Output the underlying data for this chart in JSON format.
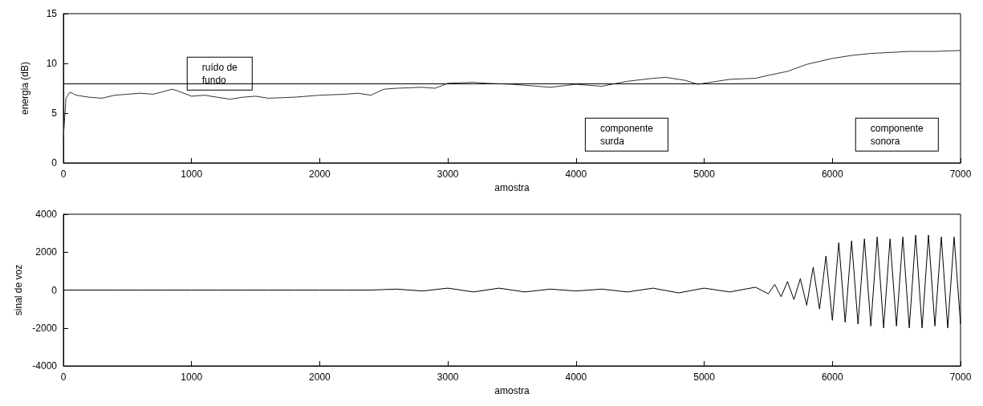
{
  "chart_data": [
    {
      "type": "line",
      "xlabel": "amostra",
      "ylabel": "energia (dB)",
      "annotations": [
        "ruído de\nfundo",
        "componente\nsurda",
        "componente\nsonora"
      ],
      "xlim": [
        0,
        7000
      ],
      "xticks": [
        0,
        1000,
        2000,
        3000,
        4000,
        5000,
        6000,
        7000
      ],
      "ylim": [
        0,
        15
      ],
      "yticks": [
        0,
        5,
        10,
        15
      ],
      "grid": false,
      "marker": "none",
      "line_style": "solid",
      "ref_lines": [
        {
          "axis": "y",
          "value": 8,
          "color": "#000000"
        }
      ],
      "series": [
        {
          "color": "#333333",
          "x": [
            0,
            20,
            50,
            100,
            200,
            300,
            400,
            500,
            600,
            700,
            850,
            900,
            1000,
            1100,
            1300,
            1400,
            1500,
            1600,
            1800,
            2000,
            2200,
            2300,
            2400,
            2500,
            2600,
            2800,
            2900,
            3000,
            3200,
            3300,
            3500,
            3700,
            3800,
            4000,
            4200,
            4400,
            4600,
            4700,
            4850,
            4950,
            5100,
            5200,
            5400,
            5500,
            5650,
            5800,
            5900,
            6000,
            6150,
            6300,
            6450,
            6600,
            6800,
            7000
          ],
          "values": [
            2.5,
            6.5,
            7.1,
            6.8,
            6.6,
            6.5,
            6.8,
            6.9,
            7.0,
            6.9,
            7.4,
            7.2,
            6.7,
            6.8,
            6.4,
            6.6,
            6.7,
            6.5,
            6.6,
            6.8,
            6.9,
            7.0,
            6.8,
            7.4,
            7.5,
            7.6,
            7.5,
            8.0,
            8.1,
            8.0,
            7.9,
            7.7,
            7.6,
            7.9,
            7.7,
            8.2,
            8.5,
            8.6,
            8.3,
            7.9,
            8.2,
            8.4,
            8.5,
            8.8,
            9.2,
            9.9,
            10.2,
            10.5,
            10.8,
            11.0,
            11.1,
            11.2,
            11.2,
            11.3
          ]
        }
      ]
    },
    {
      "type": "line",
      "xlabel": "amostra",
      "ylabel": "sinal de voz",
      "xlim": [
        0,
        7000
      ],
      "xticks": [
        0,
        1000,
        2000,
        3000,
        4000,
        5000,
        6000,
        7000
      ],
      "ylim": [
        -4000,
        4000
      ],
      "yticks": [
        -4000,
        -2000,
        0,
        2000,
        4000
      ],
      "grid": false,
      "marker": "none",
      "line_style": "solid",
      "series": [
        {
          "color": "#000000",
          "x": [
            0,
            200,
            400,
            600,
            800,
            1000,
            1200,
            1400,
            1600,
            1800,
            2000,
            2200,
            2400,
            2600,
            2800,
            3000,
            3200,
            3400,
            3600,
            3800,
            4000,
            4200,
            4400,
            4600,
            4800,
            5000,
            5200,
            5400,
            5500,
            5550,
            5600,
            5650,
            5700,
            5750,
            5800,
            5850,
            5900,
            5950,
            6000,
            6050,
            6100,
            6150,
            6200,
            6250,
            6300,
            6350,
            6400,
            6450,
            6500,
            6550,
            6600,
            6650,
            6700,
            6750,
            6800,
            6850,
            6900,
            6950,
            7000
          ],
          "values": [
            0,
            0,
            0,
            0,
            0,
            0,
            0,
            0,
            0,
            0,
            0,
            0,
            0,
            50,
            -50,
            100,
            -100,
            100,
            -100,
            50,
            -50,
            50,
            -100,
            100,
            -150,
            100,
            -100,
            150,
            -200,
            300,
            -350,
            450,
            -500,
            600,
            -800,
            1200,
            -1000,
            1800,
            -1600,
            2500,
            -1700,
            2600,
            -1800,
            2700,
            -1900,
            2800,
            -2000,
            2700,
            -1900,
            2800,
            -2000,
            2900,
            -2000,
            2900,
            -1900,
            2800,
            -2000,
            2800,
            -1800
          ]
        }
      ]
    }
  ]
}
